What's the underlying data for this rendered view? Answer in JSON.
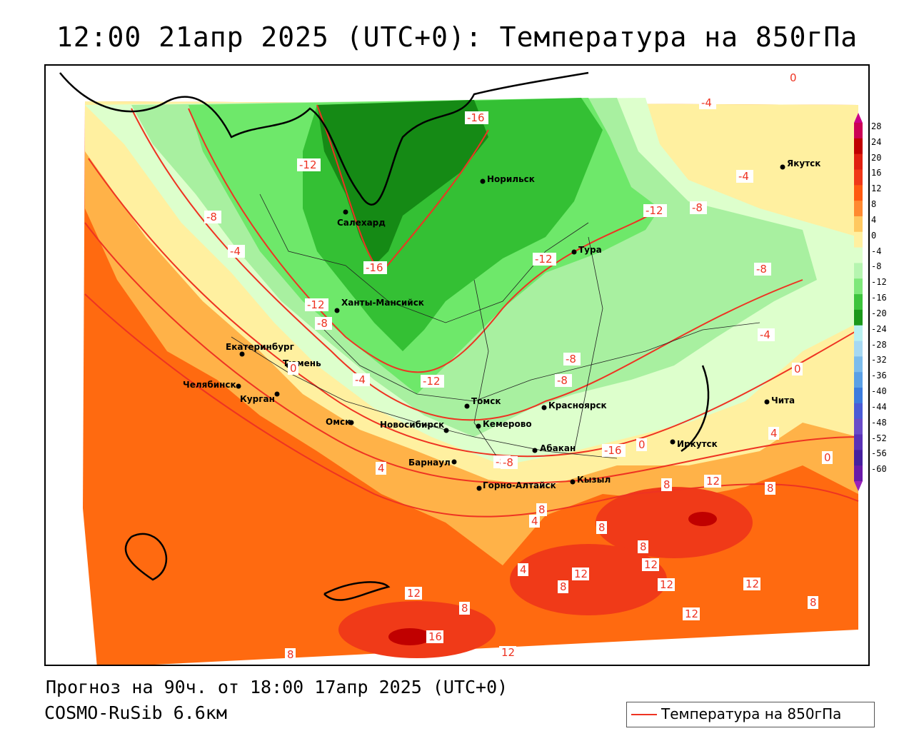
{
  "title": "12:00 21апр 2025 (UTC+0): Температура на 850гПа",
  "footer": {
    "forecast": "Прогноз на 90ч. от 18:00 17апр 2025 (UTC+0)",
    "model": "COSMO-RuSib 6.6км"
  },
  "legend": {
    "label": "Температура на 850гПа",
    "color": "#ee3322"
  },
  "colorbar": {
    "ticks": [
      "28",
      "24",
      "20",
      "16",
      "12",
      "8",
      "4",
      "0",
      "-4",
      "-8",
      "-12",
      "-16",
      "-20",
      "-24",
      "-28",
      "-32",
      "-36",
      "-40",
      "-44",
      "-48",
      "-52",
      "-56",
      "-60"
    ],
    "colors": [
      "#cc0055",
      "#c00000",
      "#e02010",
      "#f03818",
      "#ff5a10",
      "#ff8a30",
      "#ffc860",
      "#fff0a0",
      "#ddffcc",
      "#b6f5b0",
      "#7ee87a",
      "#3cc43c",
      "#1a981a",
      "#b8f0f0",
      "#a6d8f2",
      "#7cbcec",
      "#5aa0e6",
      "#3c7cde",
      "#4a5cd6",
      "#6a4cc8",
      "#5a32b6",
      "#46209e",
      "#6a1aa8"
    ]
  },
  "cities": [
    {
      "name": "Салехард"
    },
    {
      "name": "Норильск"
    },
    {
      "name": "Якутск"
    },
    {
      "name": "Тура"
    },
    {
      "name": "Ханты-Мансийск"
    },
    {
      "name": "Екатеринбург"
    },
    {
      "name": "Тюмень"
    },
    {
      "name": "Челябинск"
    },
    {
      "name": "Курган"
    },
    {
      "name": "Омск"
    },
    {
      "name": "Новосибирск"
    },
    {
      "name": "Томск"
    },
    {
      "name": "Кемерово"
    },
    {
      "name": "Красноярск"
    },
    {
      "name": "Абакан"
    },
    {
      "name": "Барнаул"
    },
    {
      "name": "Горно-Алтайск"
    },
    {
      "name": "Кызыл"
    },
    {
      "name": "Иркутск"
    },
    {
      "name": "Чита"
    }
  ],
  "contour_labels": [
    {
      "text": "-16"
    },
    {
      "text": "-12"
    },
    {
      "text": "-8"
    },
    {
      "text": "-4"
    },
    {
      "text": "-12"
    },
    {
      "text": "-8"
    },
    {
      "text": "-4"
    },
    {
      "text": "0"
    },
    {
      "text": "-4"
    },
    {
      "text": "-12"
    },
    {
      "text": "-8"
    },
    {
      "text": "-8"
    },
    {
      "text": "-4"
    },
    {
      "text": "-16"
    },
    {
      "text": "-12"
    },
    {
      "text": "-8"
    },
    {
      "text": "0"
    },
    {
      "text": "0"
    },
    {
      "text": "-4"
    },
    {
      "text": "-12"
    },
    {
      "text": "-8"
    },
    {
      "text": "-8"
    },
    {
      "text": "4"
    },
    {
      "text": "0"
    },
    {
      "text": "8"
    },
    {
      "text": "4"
    },
    {
      "text": "-8"
    },
    {
      "text": "-16"
    },
    {
      "text": "0"
    },
    {
      "text": "12"
    },
    {
      "text": "8"
    },
    {
      "text": "8"
    },
    {
      "text": "4"
    },
    {
      "text": "8"
    },
    {
      "text": "8"
    },
    {
      "text": "12"
    },
    {
      "text": "4"
    },
    {
      "text": "12"
    },
    {
      "text": "8"
    },
    {
      "text": "12"
    },
    {
      "text": "12"
    },
    {
      "text": "12"
    },
    {
      "text": "8"
    },
    {
      "text": "12"
    },
    {
      "text": "16"
    },
    {
      "text": "8"
    },
    {
      "text": "12"
    },
    {
      "text": "8"
    }
  ]
}
